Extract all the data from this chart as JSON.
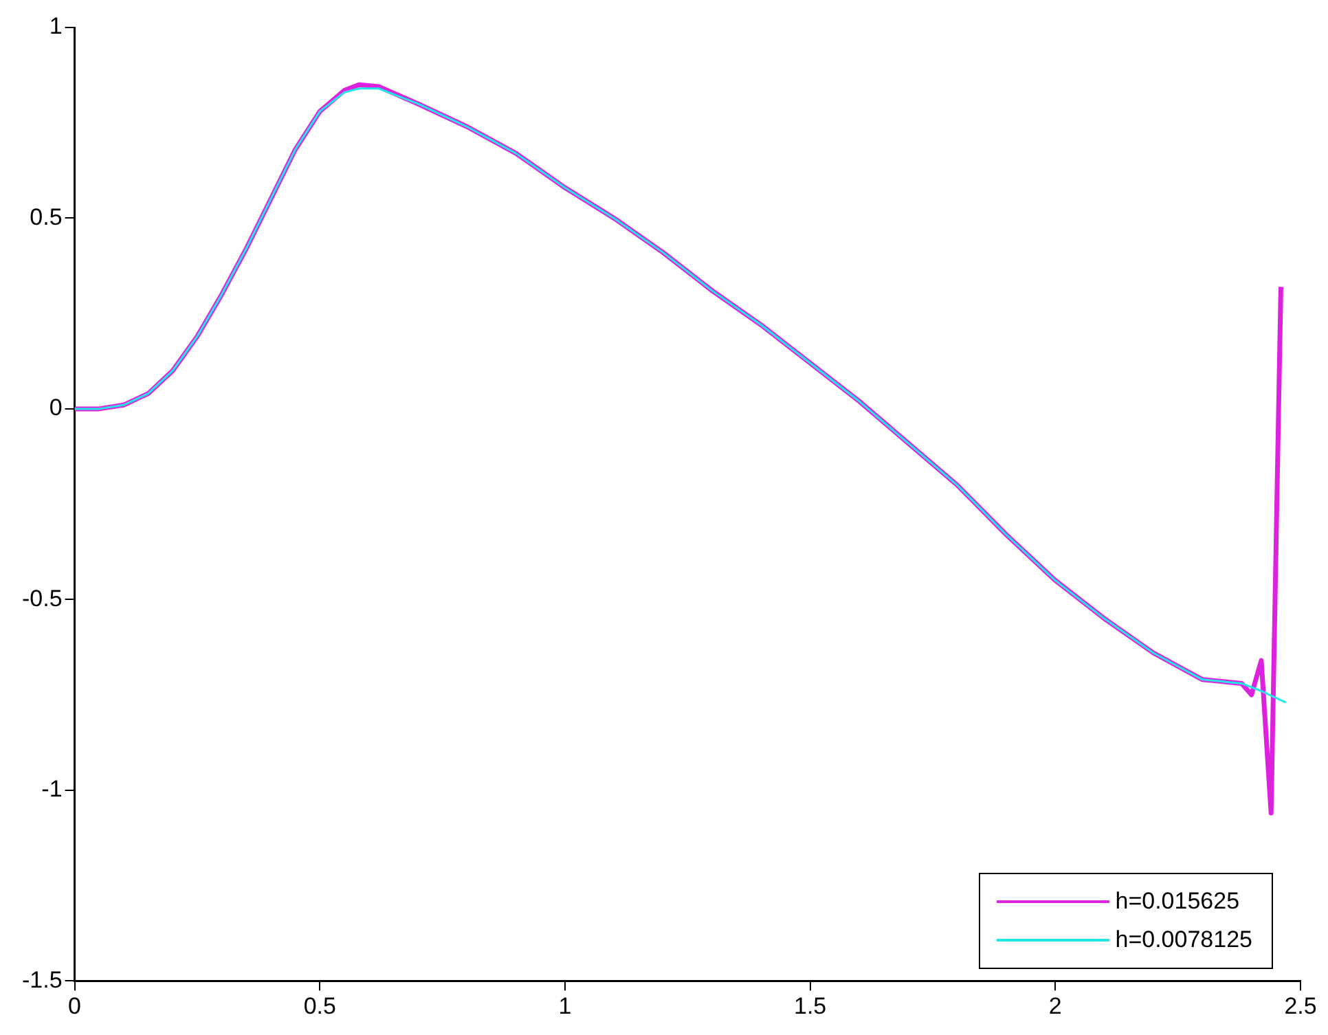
{
  "chart_data": {
    "type": "line",
    "xlim": [
      0,
      2.5
    ],
    "ylim": [
      -1.5,
      1
    ],
    "xticks": [
      0,
      0.5,
      1,
      1.5,
      2,
      2.5
    ],
    "yticks": [
      -1.5,
      -1,
      -0.5,
      0,
      0.5,
      1
    ],
    "grid": false,
    "legend": "bottom right",
    "marker": "none",
    "line_style": "solid",
    "series": [
      {
        "name": "h=0.015625",
        "color": "#dd22dd",
        "x": [
          0,
          0.05,
          0.1,
          0.15,
          0.2,
          0.25,
          0.3,
          0.35,
          0.4,
          0.45,
          0.5,
          0.55,
          0.58,
          0.62,
          0.7,
          0.8,
          0.9,
          1.0,
          1.1,
          1.2,
          1.3,
          1.4,
          1.5,
          1.6,
          1.7,
          1.8,
          1.9,
          2.0,
          2.1,
          2.2,
          2.3,
          2.38,
          2.4,
          2.42,
          2.44,
          2.46
        ],
        "values": [
          0,
          0,
          0.01,
          0.04,
          0.1,
          0.19,
          0.3,
          0.42,
          0.55,
          0.68,
          0.78,
          0.835,
          0.85,
          0.845,
          0.8,
          0.74,
          0.67,
          0.58,
          0.5,
          0.41,
          0.31,
          0.22,
          0.12,
          0.02,
          -0.09,
          -0.2,
          -0.33,
          -0.45,
          -0.55,
          -0.64,
          -0.71,
          -0.72,
          -0.75,
          -0.66,
          -1.06,
          0.32
        ]
      },
      {
        "name": "h=0.0078125",
        "color": "#22e6e6",
        "x": [
          0,
          0.05,
          0.1,
          0.15,
          0.2,
          0.25,
          0.3,
          0.35,
          0.4,
          0.45,
          0.5,
          0.55,
          0.58,
          0.62,
          0.7,
          0.8,
          0.9,
          1.0,
          1.1,
          1.2,
          1.3,
          1.4,
          1.5,
          1.6,
          1.7,
          1.8,
          1.9,
          2.0,
          2.1,
          2.2,
          2.3,
          2.38,
          2.42,
          2.47
        ],
        "values": [
          0,
          0,
          0.01,
          0.04,
          0.1,
          0.19,
          0.3,
          0.42,
          0.55,
          0.68,
          0.78,
          0.83,
          0.84,
          0.84,
          0.8,
          0.74,
          0.67,
          0.58,
          0.5,
          0.41,
          0.31,
          0.22,
          0.12,
          0.02,
          -0.09,
          -0.2,
          -0.33,
          -0.45,
          -0.55,
          -0.64,
          -0.71,
          -0.72,
          -0.74,
          -0.77
        ]
      }
    ]
  }
}
